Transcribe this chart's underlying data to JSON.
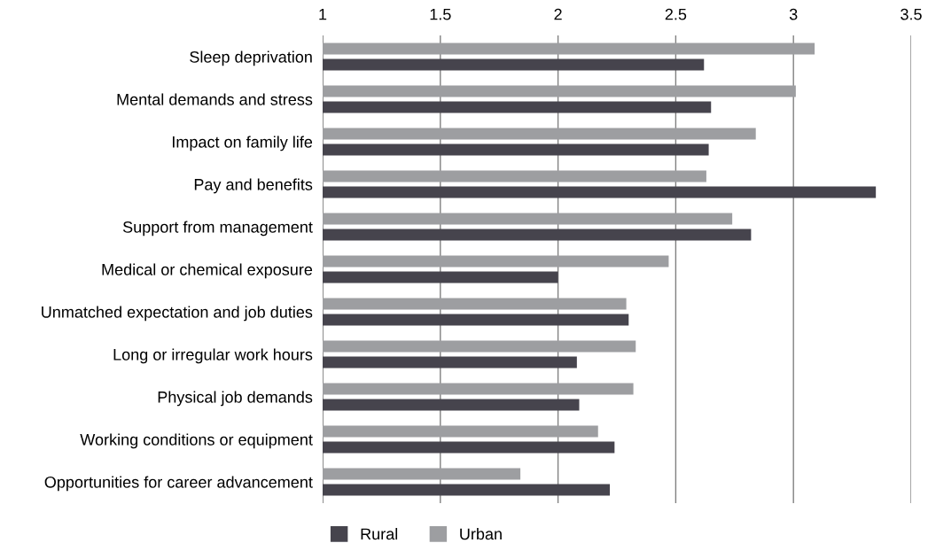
{
  "chart_data": {
    "type": "bar",
    "orientation": "horizontal",
    "categories": [
      "Sleep deprivation",
      "Mental demands and stress",
      "Impact on family life",
      "Pay and benefits",
      "Support from management",
      "Medical or chemical exposure",
      "Unmatched expectation and job duties",
      "Long or irregular work hours",
      "Physical job demands",
      "Working conditions or equipment",
      "Opportunities for career advancement"
    ],
    "series": [
      {
        "name": "Rural",
        "color": "#46444d",
        "values": [
          2.62,
          2.65,
          2.64,
          3.35,
          2.82,
          2.0,
          2.3,
          2.08,
          2.09,
          2.24,
          2.22
        ]
      },
      {
        "name": "Urban",
        "color": "#9d9ea1",
        "values": [
          3.09,
          3.01,
          2.84,
          2.63,
          2.74,
          2.47,
          2.29,
          2.33,
          2.32,
          2.17,
          1.84
        ]
      }
    ],
    "xlim": [
      1,
      3.5
    ],
    "xticks": [
      1,
      1.5,
      2,
      2.5,
      3,
      3.5
    ],
    "grid": "x",
    "legend": "bottom left"
  }
}
